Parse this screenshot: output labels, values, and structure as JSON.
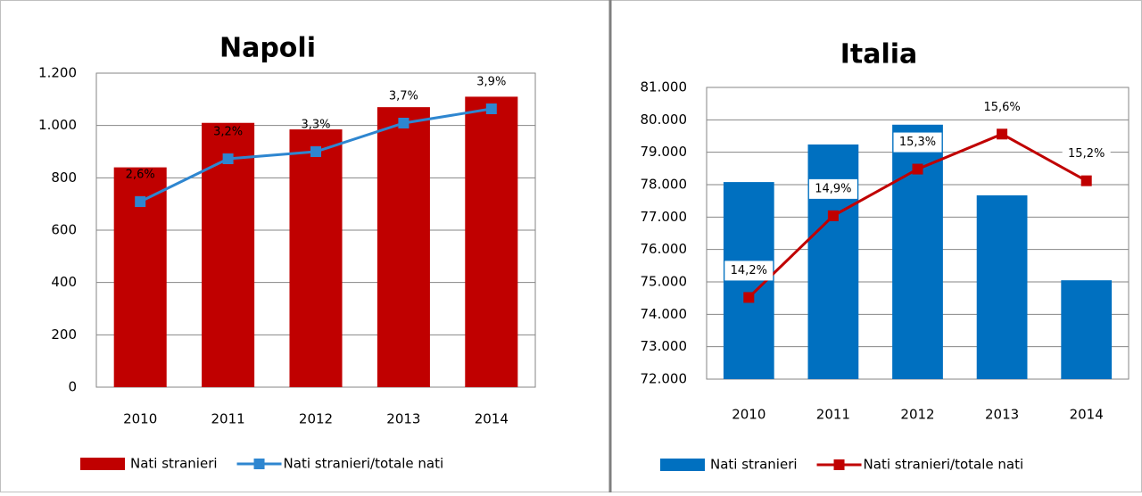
{
  "chart_data": [
    {
      "type": "bar",
      "title": "Napoli",
      "categories": [
        "2010",
        "2011",
        "2012",
        "2013",
        "2014"
      ],
      "series": [
        {
          "name": "Nati stranieri",
          "color": "#c00000",
          "values": [
            840,
            1010,
            985,
            1070,
            1110
          ]
        },
        {
          "name": "Nati stranieri/totale nati",
          "type": "line",
          "axis": "y2",
          "color": "#2e86d0",
          "values": [
            2.6,
            3.2,
            3.3,
            3.7,
            3.9
          ],
          "value_labels": [
            "2,6%",
            "3,2%",
            "3,3%",
            "3,7%",
            "3,9%"
          ]
        }
      ],
      "ylim": [
        0,
        1200
      ],
      "yticks": [
        0,
        200,
        400,
        600,
        800,
        {
          "value": 1000,
          "label": "1.000"
        },
        {
          "value": 1200,
          "label": "1.200"
        }
      ],
      "y2lim": [
        0,
        4.4
      ],
      "grid": true,
      "legend": "bottom"
    },
    {
      "type": "bar",
      "title": "Italia",
      "categories": [
        "2010",
        "2011",
        "2012",
        "2013",
        "2014"
      ],
      "series": [
        {
          "name": "Nati stranieri",
          "color": "#0070c0",
          "values": [
            78080,
            79240,
            79850,
            77670,
            75050
          ]
        },
        {
          "name": "Nati stranieri/totale nati",
          "type": "line",
          "axis": "y2",
          "color": "#c00000",
          "values": [
            14.2,
            14.9,
            15.3,
            15.6,
            15.2
          ],
          "value_labels": [
            "14,2%",
            "14,9%",
            "15,3%",
            "15,6%",
            "15,2%"
          ]
        }
      ],
      "ylim": [
        72000,
        81000
      ],
      "yticks": [
        {
          "value": 72000,
          "label": "72.000"
        },
        {
          "value": 73000,
          "label": "73.000"
        },
        {
          "value": 74000,
          "label": "74.000"
        },
        {
          "value": 75000,
          "label": "75.000"
        },
        {
          "value": 76000,
          "label": "76.000"
        },
        {
          "value": 77000,
          "label": "77.000"
        },
        {
          "value": 78000,
          "label": "78.000"
        },
        {
          "value": 79000,
          "label": "79.000"
        },
        {
          "value": 80000,
          "label": "80.000"
        },
        {
          "value": 81000,
          "label": "81.000"
        }
      ],
      "y2lim": [
        13.5,
        16
      ],
      "grid": true,
      "legend": "bottom"
    }
  ]
}
